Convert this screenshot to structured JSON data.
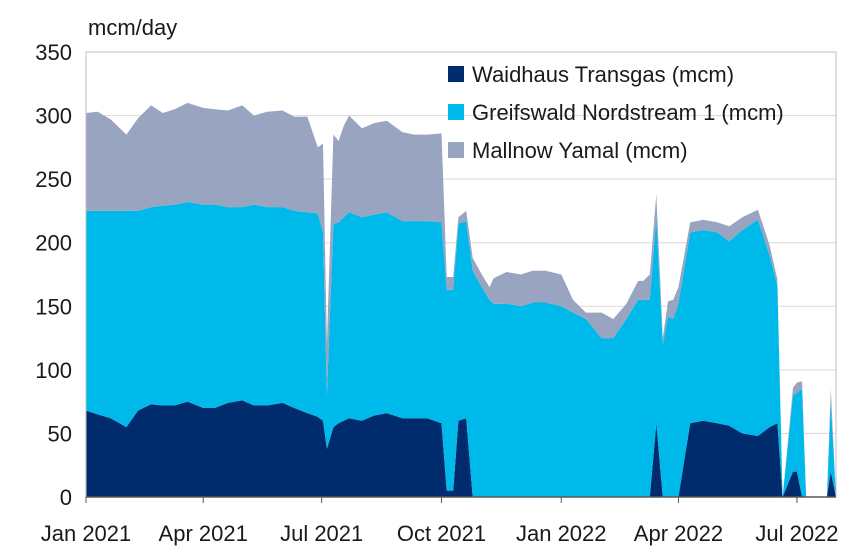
{
  "chart_data": {
    "type": "area",
    "stacked": true,
    "ylabel": "mcm/day",
    "ylim": [
      0,
      350
    ],
    "yticks": [
      0,
      50,
      100,
      150,
      200,
      250,
      300,
      350
    ],
    "xlim": [
      "2021-01-01",
      "2022-07-31"
    ],
    "xticks": [
      {
        "date": "2021-01-01",
        "label": "Jan 2021"
      },
      {
        "date": "2021-04-01",
        "label": "Apr 2021"
      },
      {
        "date": "2021-07-01",
        "label": "Jul 2021"
      },
      {
        "date": "2021-10-01",
        "label": "Oct 2021"
      },
      {
        "date": "2022-01-01",
        "label": "Jan 2022"
      },
      {
        "date": "2022-04-01",
        "label": "Apr 2022"
      },
      {
        "date": "2022-07-01",
        "label": "Jul 2022"
      }
    ],
    "grid": "horizontal",
    "legend_position": "top-right",
    "x": [
      "2021-01-01",
      "2021-01-10",
      "2021-01-20",
      "2021-02-01",
      "2021-02-10",
      "2021-02-20",
      "2021-03-01",
      "2021-03-10",
      "2021-03-20",
      "2021-04-01",
      "2021-04-10",
      "2021-04-20",
      "2021-05-01",
      "2021-05-10",
      "2021-05-20",
      "2021-06-01",
      "2021-06-10",
      "2021-06-20",
      "2021-06-28",
      "2021-07-02",
      "2021-07-05",
      "2021-07-10",
      "2021-07-14",
      "2021-07-18",
      "2021-07-22",
      "2021-08-01",
      "2021-08-10",
      "2021-08-20",
      "2021-09-01",
      "2021-09-10",
      "2021-09-20",
      "2021-10-01",
      "2021-10-05",
      "2021-10-10",
      "2021-10-14",
      "2021-10-20",
      "2021-10-25",
      "2021-11-01",
      "2021-11-07",
      "2021-11-10",
      "2021-11-20",
      "2021-12-01",
      "2021-12-10",
      "2021-12-20",
      "2022-01-01",
      "2022-01-10",
      "2022-01-20",
      "2022-02-01",
      "2022-02-10",
      "2022-02-20",
      "2022-03-01",
      "2022-03-05",
      "2022-03-10",
      "2022-03-15",
      "2022-03-20",
      "2022-03-24",
      "2022-03-28",
      "2022-04-01",
      "2022-04-10",
      "2022-04-20",
      "2022-05-01",
      "2022-05-10",
      "2022-05-20",
      "2022-06-01",
      "2022-06-10",
      "2022-06-16",
      "2022-06-20",
      "2022-06-28",
      "2022-07-01",
      "2022-07-05",
      "2022-07-08",
      "2022-07-12",
      "2022-07-18",
      "2022-07-21",
      "2022-07-24",
      "2022-07-27",
      "2022-07-31"
    ],
    "series": [
      {
        "name": "Waidhaus Transgas (mcm)",
        "color": "#002c6e",
        "values": [
          68,
          65,
          62,
          55,
          68,
          73,
          72,
          72,
          75,
          70,
          70,
          74,
          76,
          72,
          72,
          74,
          70,
          66,
          63,
          60,
          38,
          55,
          58,
          60,
          62,
          60,
          64,
          66,
          62,
          62,
          62,
          58,
          5,
          5,
          60,
          62,
          0,
          0,
          0,
          0,
          0,
          0,
          0,
          0,
          0,
          0,
          0,
          0,
          0,
          0,
          0,
          0,
          0,
          58,
          0,
          0,
          0,
          0,
          58,
          60,
          58,
          56,
          50,
          48,
          55,
          58,
          0,
          20,
          20,
          0,
          0,
          0,
          0,
          0,
          0,
          20,
          0
        ]
      },
      {
        "name": "Greifswald Nordstream 1 (mcm)",
        "color": "#00b9eb",
        "values": [
          157,
          160,
          163,
          170,
          157,
          155,
          157,
          158,
          157,
          160,
          160,
          154,
          152,
          158,
          156,
          154,
          155,
          158,
          160,
          148,
          42,
          160,
          158,
          160,
          162,
          160,
          158,
          158,
          155,
          155,
          155,
          158,
          158,
          158,
          155,
          155,
          178,
          165,
          155,
          152,
          152,
          150,
          153,
          153,
          150,
          145,
          140,
          125,
          125,
          140,
          155,
          155,
          155,
          162,
          120,
          142,
          140,
          152,
          150,
          150,
          150,
          145,
          160,
          170,
          135,
          108,
          0,
          60,
          62,
          85,
          0,
          0,
          0,
          0,
          0,
          55,
          0
        ]
      },
      {
        "name": "Mallnow Yamal (mcm)",
        "color": "#98a4c0",
        "values": [
          77,
          78,
          72,
          60,
          73,
          80,
          73,
          75,
          78,
          76,
          75,
          76,
          80,
          70,
          75,
          76,
          74,
          75,
          52,
          70,
          40,
          70,
          64,
          72,
          76,
          70,
          72,
          72,
          70,
          68,
          68,
          70,
          10,
          10,
          5,
          8,
          10,
          10,
          10,
          20,
          25,
          25,
          25,
          25,
          25,
          10,
          5,
          20,
          15,
          12,
          15,
          15,
          20,
          18,
          5,
          12,
          15,
          13,
          8,
          8,
          8,
          12,
          10,
          8,
          8,
          5,
          0,
          6,
          8,
          6,
          0,
          0,
          0,
          0,
          0,
          10,
          0
        ]
      }
    ]
  }
}
